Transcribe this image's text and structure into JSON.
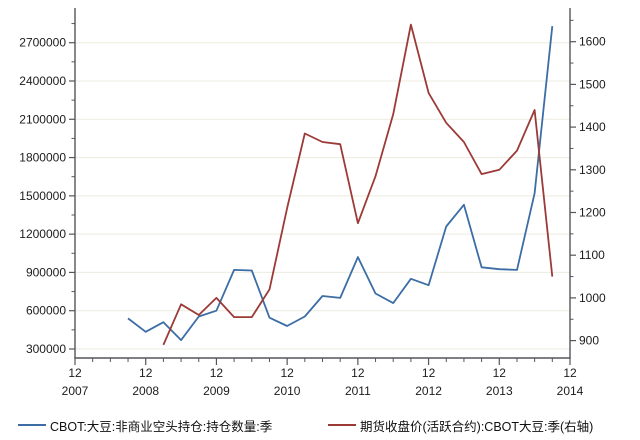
{
  "chart_data": {
    "type": "line",
    "title": "",
    "grid": true,
    "legend_position": "bottom",
    "x_axis": {
      "month_tick_label": "12",
      "year_labels": [
        "2007",
        "2008",
        "2009",
        "2010",
        "2011",
        "2012",
        "2013",
        "2014"
      ],
      "minor_ticks": "quarterly"
    },
    "y_axis_left": {
      "range": [
        300000,
        2700000
      ],
      "tick_step": 300000,
      "tick_labels": [
        "300000",
        "600000",
        "900000",
        "1200000",
        "1500000",
        "1800000",
        "2100000",
        "2400000",
        "2700000"
      ]
    },
    "y_axis_right": {
      "range": [
        900,
        1600
      ],
      "tick_step": 100,
      "tick_labels": [
        "900",
        "1000",
        "1100",
        "1200",
        "1300",
        "1400",
        "1500",
        "1600"
      ]
    },
    "series": [
      {
        "name": "CBOT:大豆:非商业空头持仓:持仓数量:季",
        "axis": "left",
        "color": "#3c6da5",
        "x": [
          "2008-09",
          "2008-12",
          "2009-03",
          "2009-06",
          "2009-09",
          "2009-12",
          "2010-03",
          "2010-06",
          "2010-09",
          "2010-12",
          "2011-03",
          "2011-06",
          "2011-09",
          "2011-12",
          "2012-03",
          "2012-06",
          "2012-09",
          "2012-12",
          "2013-03",
          "2013-06",
          "2013-09",
          "2013-12",
          "2014-03",
          "2014-06",
          "2014-09"
        ],
        "values": [
          540000,
          435000,
          510000,
          370000,
          555000,
          600000,
          920000,
          915000,
          545000,
          480000,
          555000,
          715000,
          700000,
          1020000,
          735000,
          660000,
          850000,
          800000,
          1260000,
          1430000,
          940000,
          925000,
          920000,
          1520000,
          2830000
        ]
      },
      {
        "name": "期货收盘价(活跃合约):CBOT大豆:季(右轴)",
        "axis": "right",
        "color": "#9c3a37",
        "x": [
          "2009-03",
          "2009-06",
          "2009-09",
          "2009-12",
          "2010-03",
          "2010-06",
          "2010-09",
          "2010-12",
          "2011-03",
          "2011-06",
          "2011-09",
          "2011-12",
          "2012-03",
          "2012-06",
          "2012-09",
          "2012-12",
          "2013-03",
          "2013-06",
          "2013-09",
          "2013-12",
          "2014-03",
          "2014-06",
          "2014-09"
        ],
        "values": [
          890,
          985,
          960,
          1000,
          955,
          955,
          1020,
          1210,
          1385,
          1365,
          1360,
          1175,
          1285,
          1430,
          1640,
          1480,
          1410,
          1365,
          1290,
          1300,
          1345,
          1440,
          1050
        ]
      }
    ]
  },
  "colors": {
    "background": "#ffffff",
    "axis": "#55565a",
    "grid": "#edebdf",
    "text": "#1c1c1c",
    "series_blue": "#3c6da5",
    "series_red": "#9c3a37"
  }
}
